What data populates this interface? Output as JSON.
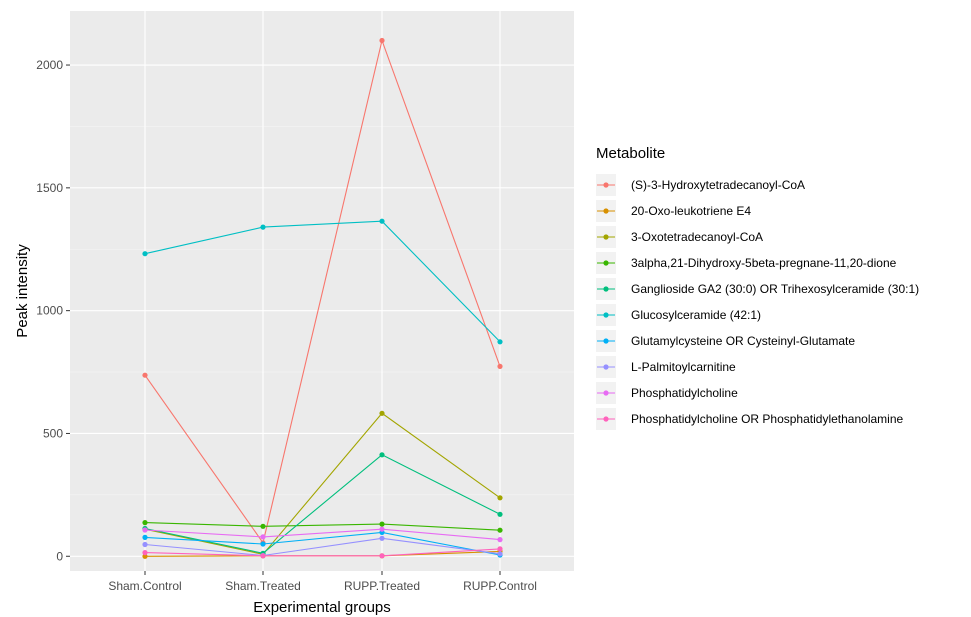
{
  "chart_data": {
    "type": "line",
    "xlabel": "Experimental groups",
    "ylabel": "Peak intensity",
    "categories": [
      "Sham.Control",
      "Sham.Treated",
      "RUPP.Treated",
      "RUPP.Control"
    ],
    "ylim": [
      -60,
      2220
    ],
    "yticks": [
      0,
      500,
      1000,
      1500,
      2000
    ],
    "grid": true,
    "legend_position": "right",
    "legend_title": "Metabolite",
    "series": [
      {
        "name": "(S)-3-Hydroxytetradecanoyl-CoA",
        "color": "#F8766D",
        "values": [
          737,
          55,
          2100,
          773
        ]
      },
      {
        "name": "20-Oxo-leukotriene E4",
        "color": "#D89000",
        "values": [
          0,
          2,
          2,
          20
        ]
      },
      {
        "name": "3-Oxotetradecanoyl-CoA",
        "color": "#A3A500",
        "values": [
          110,
          8,
          582,
          238
        ]
      },
      {
        "name": "3alpha,21-Dihydroxy-5beta-pregnane-11,20-dione",
        "color": "#39B600",
        "values": [
          137,
          122,
          131,
          106
        ]
      },
      {
        "name": "Ganglioside GA2 (30:0) OR Trihexosylceramide (30:1)",
        "color": "#00BF7D",
        "values": [
          113,
          12,
          413,
          171
        ]
      },
      {
        "name": "Glucosylceramide (42:1)",
        "color": "#00BFC4",
        "values": [
          1232,
          1340,
          1364,
          873
        ]
      },
      {
        "name": "Glutamylcysteine OR Cysteinyl-Glutamate",
        "color": "#00B0F6",
        "values": [
          77,
          50,
          97,
          5
        ]
      },
      {
        "name": "L-Palmitoylcarnitine",
        "color": "#9590FF",
        "values": [
          48,
          3,
          73,
          10
        ]
      },
      {
        "name": "Phosphatidylcholine",
        "color": "#E76BF3",
        "values": [
          107,
          79,
          110,
          68
        ]
      },
      {
        "name": "Phosphatidylcholine OR Phosphatidylethanolamine",
        "color": "#FF62BC",
        "values": [
          15,
          2,
          2,
          30
        ]
      }
    ]
  }
}
